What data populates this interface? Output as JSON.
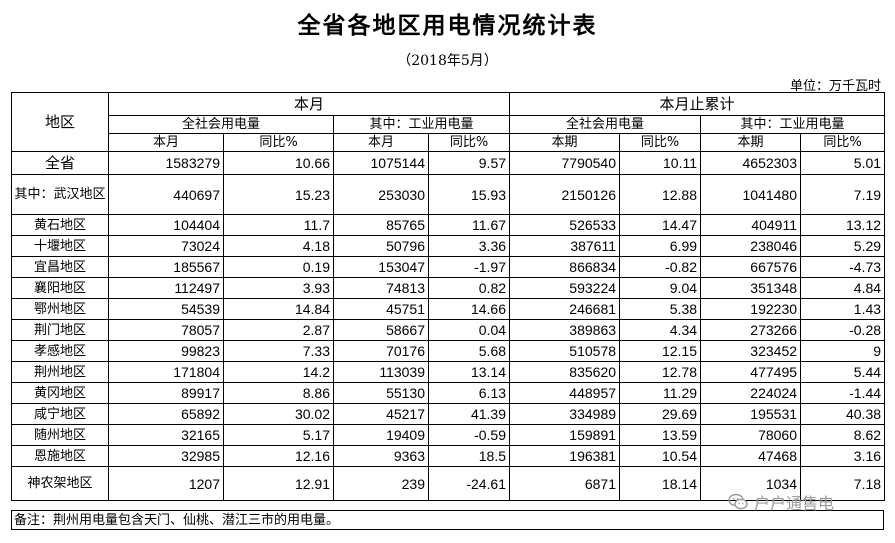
{
  "title": "全省各地区用电情况统计表",
  "subtitle": "（2018年5月）",
  "unit": "单位：万千瓦时",
  "header": {
    "region": "地区",
    "month": "本月",
    "cumulative": "本月止累计",
    "total_use": "全社会用电量",
    "industrial": "其中：工业用电量",
    "this_month": "本月",
    "this_period": "本期",
    "yoy": "同比%"
  },
  "rows": [
    {
      "region": "全省",
      "m_total": "1583279",
      "m_total_yoy": "10.66",
      "m_ind": "1075144",
      "m_ind_yoy": "9.57",
      "c_total": "7790540",
      "c_total_yoy": "10.11",
      "c_ind": "4652303",
      "c_ind_yoy": "5.01"
    },
    {
      "region": "其中：武汉地区",
      "m_total": "440697",
      "m_total_yoy": "15.23",
      "m_ind": "253030",
      "m_ind_yoy": "15.93",
      "c_total": "2150126",
      "c_total_yoy": "12.88",
      "c_ind": "1041480",
      "c_ind_yoy": "7.19"
    },
    {
      "region": "黄石地区",
      "m_total": "104404",
      "m_total_yoy": "11.7",
      "m_ind": "85765",
      "m_ind_yoy": "11.67",
      "c_total": "526533",
      "c_total_yoy": "14.47",
      "c_ind": "404911",
      "c_ind_yoy": "13.12"
    },
    {
      "region": "十堰地区",
      "m_total": "73024",
      "m_total_yoy": "4.18",
      "m_ind": "50796",
      "m_ind_yoy": "3.36",
      "c_total": "387611",
      "c_total_yoy": "6.99",
      "c_ind": "238046",
      "c_ind_yoy": "5.29"
    },
    {
      "region": "宜昌地区",
      "m_total": "185567",
      "m_total_yoy": "0.19",
      "m_ind": "153047",
      "m_ind_yoy": "-1.97",
      "c_total": "866834",
      "c_total_yoy": "-0.82",
      "c_ind": "667576",
      "c_ind_yoy": "-4.73"
    },
    {
      "region": "襄阳地区",
      "m_total": "112497",
      "m_total_yoy": "3.93",
      "m_ind": "74813",
      "m_ind_yoy": "0.82",
      "c_total": "593224",
      "c_total_yoy": "9.04",
      "c_ind": "351348",
      "c_ind_yoy": "4.84"
    },
    {
      "region": "鄂州地区",
      "m_total": "54539",
      "m_total_yoy": "14.84",
      "m_ind": "45751",
      "m_ind_yoy": "14.66",
      "c_total": "246681",
      "c_total_yoy": "5.38",
      "c_ind": "192230",
      "c_ind_yoy": "1.43"
    },
    {
      "region": "荆门地区",
      "m_total": "78057",
      "m_total_yoy": "2.87",
      "m_ind": "58667",
      "m_ind_yoy": "0.04",
      "c_total": "389863",
      "c_total_yoy": "4.34",
      "c_ind": "273266",
      "c_ind_yoy": "-0.28"
    },
    {
      "region": "孝感地区",
      "m_total": "99823",
      "m_total_yoy": "7.33",
      "m_ind": "70176",
      "m_ind_yoy": "5.68",
      "c_total": "510578",
      "c_total_yoy": "12.15",
      "c_ind": "323452",
      "c_ind_yoy": "9"
    },
    {
      "region": "荆州地区",
      "m_total": "171804",
      "m_total_yoy": "14.2",
      "m_ind": "113039",
      "m_ind_yoy": "13.14",
      "c_total": "835620",
      "c_total_yoy": "12.78",
      "c_ind": "477495",
      "c_ind_yoy": "5.44"
    },
    {
      "region": "黄冈地区",
      "m_total": "89917",
      "m_total_yoy": "8.86",
      "m_ind": "55130",
      "m_ind_yoy": "6.13",
      "c_total": "448957",
      "c_total_yoy": "11.29",
      "c_ind": "224024",
      "c_ind_yoy": "-1.44"
    },
    {
      "region": "咸宁地区",
      "m_total": "65892",
      "m_total_yoy": "30.02",
      "m_ind": "45217",
      "m_ind_yoy": "41.39",
      "c_total": "334989",
      "c_total_yoy": "29.69",
      "c_ind": "195531",
      "c_ind_yoy": "40.38"
    },
    {
      "region": "随州地区",
      "m_total": "32165",
      "m_total_yoy": "5.17",
      "m_ind": "19409",
      "m_ind_yoy": "-0.59",
      "c_total": "159891",
      "c_total_yoy": "13.59",
      "c_ind": "78060",
      "c_ind_yoy": "8.62"
    },
    {
      "region": "恩施地区",
      "m_total": "32985",
      "m_total_yoy": "12.16",
      "m_ind": "9363",
      "m_ind_yoy": "18.5",
      "c_total": "196381",
      "c_total_yoy": "10.54",
      "c_ind": "47468",
      "c_ind_yoy": "3.16"
    },
    {
      "region": "神农架地区",
      "m_total": "1207",
      "m_total_yoy": "12.91",
      "m_ind": "239",
      "m_ind_yoy": "-24.61",
      "c_total": "6871",
      "c_total_yoy": "18.14",
      "c_ind": "1034",
      "c_ind_yoy": "7.18"
    }
  ],
  "note": "备注：荆州用电量包含天门、仙桃、潜江三市的用电量。",
  "watermark": {
    "icon": "wechat-icon",
    "text": "户户通售电"
  }
}
